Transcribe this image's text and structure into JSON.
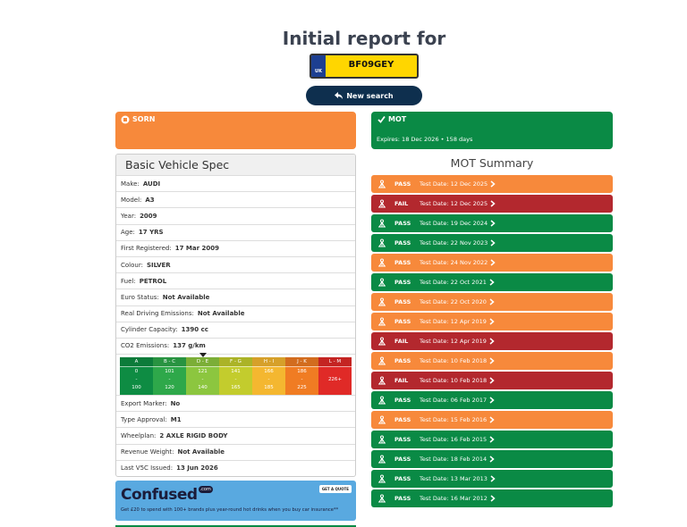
{
  "header": {
    "title": "Initial report for",
    "plate_country": "UK",
    "plate": "BF09GEY",
    "button": "New search"
  },
  "status": {
    "sorn": "SORN",
    "mot_title": "MOT",
    "mot_expiry": "Expires: 18 Dec 2026 • 158 days"
  },
  "spec": {
    "title": "Basic Vehicle Spec",
    "rows": [
      {
        "label": "Make:",
        "value": "AUDI"
      },
      {
        "label": "Model:",
        "value": "A3"
      },
      {
        "label": "Year:",
        "value": "2009"
      },
      {
        "label": "Age:",
        "value": "17 YRS"
      },
      {
        "label": "First Registered:",
        "value": "17 Mar 2009"
      },
      {
        "label": "Colour:",
        "value": "SILVER"
      },
      {
        "label": "Fuel:",
        "value": "PETROL"
      },
      {
        "label": "Euro Status:",
        "value": "Not Available"
      },
      {
        "label": "Real Driving Emissions:",
        "value": "Not Available"
      },
      {
        "label": "Cylinder Capacity:",
        "value": "1390 cc"
      },
      {
        "label": "CO2 Emissions:",
        "value": "137 g/km"
      }
    ],
    "co2_bands": {
      "separator": "-",
      "current": "D - E",
      "bands": [
        {
          "label": "A",
          "from": "0",
          "to": "100",
          "color": "#0e8c43"
        },
        {
          "label": "B - C",
          "from": "101",
          "to": "120",
          "color": "#2ea84a"
        },
        {
          "label": "D - E",
          "from": "121",
          "to": "140",
          "color": "#8cc63f"
        },
        {
          "label": "F - G",
          "from": "141",
          "to": "165",
          "color": "#c3cc2d"
        },
        {
          "label": "H - I",
          "from": "166",
          "to": "185",
          "color": "#f4b730"
        },
        {
          "label": "J - K",
          "from": "186",
          "to": "225",
          "color": "#f07c23"
        },
        {
          "label": "L - M",
          "from": "226+",
          "color": "#e02a27"
        }
      ]
    },
    "rows_after": [
      {
        "label": "Export Marker:",
        "value": "No"
      },
      {
        "label": "Type Approval:",
        "value": "M1"
      },
      {
        "label": "Wheelplan:",
        "value": "2 AXLE RIGID BODY"
      },
      {
        "label": "Revenue Weight:",
        "value": "Not Available"
      },
      {
        "label": "Last V5C Issued:",
        "value": "13 Jun 2026"
      }
    ]
  },
  "mot_summary": {
    "title": "MOT Summary",
    "tests": [
      {
        "result": "PASS",
        "date": "Test Date: 12 Dec 2025",
        "color": "#f7893b"
      },
      {
        "result": "FAIL",
        "date": "Test Date: 12 Dec 2025",
        "color": "#b3282e"
      },
      {
        "result": "PASS",
        "date": "Test Date: 19 Dec 2024",
        "color": "#0a8a45"
      },
      {
        "result": "PASS",
        "date": "Test Date: 22 Nov 2023",
        "color": "#0a8a45"
      },
      {
        "result": "PASS",
        "date": "Test Date: 24 Nov 2022",
        "color": "#f7893b"
      },
      {
        "result": "PASS",
        "date": "Test Date: 22 Oct 2021",
        "color": "#0a8a45"
      },
      {
        "result": "PASS",
        "date": "Test Date: 22 Oct 2020",
        "color": "#f7893b"
      },
      {
        "result": "PASS",
        "date": "Test Date: 12 Apr 2019",
        "color": "#f7893b"
      },
      {
        "result": "FAIL",
        "date": "Test Date: 12 Apr 2019",
        "color": "#b3282e"
      },
      {
        "result": "PASS",
        "date": "Test Date: 10 Feb 2018",
        "color": "#f7893b"
      },
      {
        "result": "FAIL",
        "date": "Test Date: 10 Feb 2018",
        "color": "#b3282e"
      },
      {
        "result": "PASS",
        "date": "Test Date: 06 Feb 2017",
        "color": "#0a8a45"
      },
      {
        "result": "PASS",
        "date": "Test Date: 15 Feb 2016",
        "color": "#f7893b"
      },
      {
        "result": "PASS",
        "date": "Test Date: 16 Feb 2015",
        "color": "#0a8a45"
      },
      {
        "result": "PASS",
        "date": "Test Date: 18 Feb 2014",
        "color": "#0a8a45"
      },
      {
        "result": "PASS",
        "date": "Test Date: 13 Mar 2013",
        "color": "#0a8a45"
      },
      {
        "result": "PASS",
        "date": "Test Date: 16 Mar 2012",
        "color": "#0a8a45"
      }
    ]
  },
  "ad": {
    "brand": "Confused",
    "brand_suffix": ".com",
    "cta": "GET A QUOTE",
    "text": "Get £20 to spend with 100+ brands plus year-round hot drinks when you buy car insurance**"
  }
}
